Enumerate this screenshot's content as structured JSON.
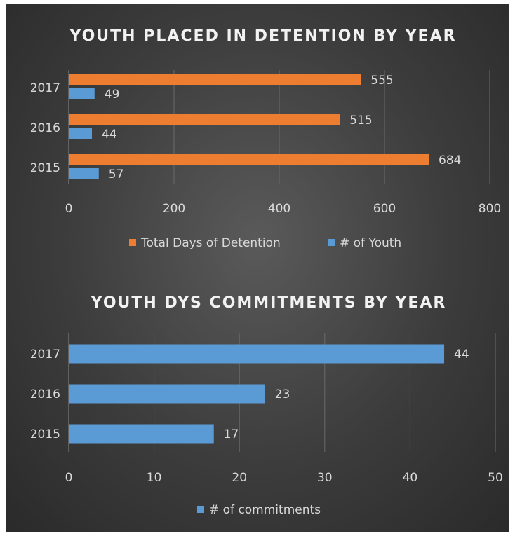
{
  "chart_data": [
    {
      "type": "bar",
      "orientation": "horizontal",
      "title": "YOUTH PLACED IN DETENTION BY YEAR",
      "categories": [
        "2017",
        "2016",
        "2015"
      ],
      "series": [
        {
          "name": "Total Days of Detention",
          "values": [
            555,
            515,
            684
          ],
          "color": "#ed7d31"
        },
        {
          "name": "# of Youth",
          "values": [
            49,
            44,
            57
          ],
          "color": "#5b9bd5"
        }
      ],
      "xlim": [
        0,
        800
      ],
      "xticks": [
        0,
        200,
        400,
        600,
        800
      ],
      "grid": true,
      "legend": "bottom"
    },
    {
      "type": "bar",
      "orientation": "horizontal",
      "title": "YOUTH DYS COMMITMENTS BY YEAR",
      "categories": [
        "2017",
        "2016",
        "2015"
      ],
      "series": [
        {
          "name": "# of commitments",
          "values": [
            44,
            23,
            17
          ],
          "color": "#5b9bd5"
        }
      ],
      "xlim": [
        0,
        50
      ],
      "xticks": [
        0,
        10,
        20,
        30,
        40,
        50
      ],
      "grid": true,
      "legend": "bottom"
    }
  ]
}
